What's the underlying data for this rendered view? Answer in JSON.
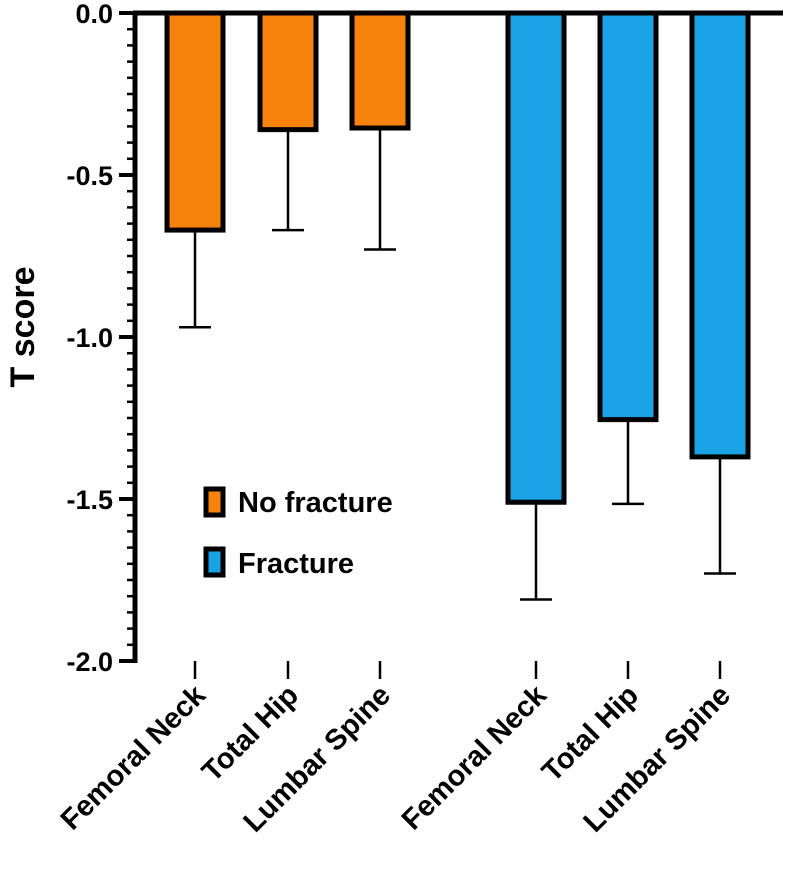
{
  "chart_data": {
    "type": "bar",
    "ylabel": "T score",
    "xlabel": "",
    "ylim": [
      -2.0,
      0.0
    ],
    "yticks": [
      {
        "value": 0.0,
        "label": "0.0"
      },
      {
        "value": -0.5,
        "label": "-0.5"
      },
      {
        "value": -1.0,
        "label": "-1.0"
      },
      {
        "value": -1.5,
        "label": "-1.5"
      },
      {
        "value": -2.0,
        "label": "-2.0"
      }
    ],
    "series": [
      {
        "name": "No fracture",
        "color": "#F7820C",
        "categories": [
          "Femoral Neck",
          "Total Hip",
          "Lumbar Spine"
        ],
        "values": [
          -0.67,
          -0.36,
          -0.355
        ],
        "error": [
          0.3,
          0.31,
          0.375
        ]
      },
      {
        "name": "Fracture",
        "color": "#1AA2E6",
        "categories": [
          "Femoral Neck",
          "Total Hip",
          "Lumbar Spine"
        ],
        "values": [
          -1.51,
          -1.255,
          -1.37
        ],
        "error": [
          0.3,
          0.26,
          0.36
        ]
      }
    ],
    "legend": {
      "position": "center-left",
      "entries": [
        "No fracture",
        "Fracture"
      ]
    }
  }
}
